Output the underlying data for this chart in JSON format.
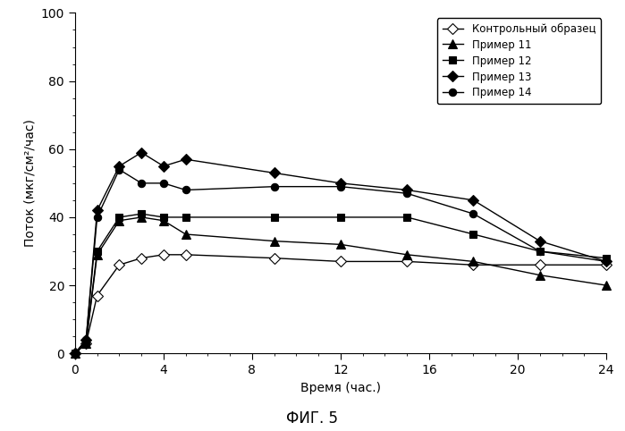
{
  "title": "ФИГ. 5",
  "xlabel": "Время (час.)",
  "ylabel": "Поток (мкг/см²/час)",
  "xlim": [
    0,
    24
  ],
  "ylim": [
    0,
    100
  ],
  "xticks": [
    0,
    4,
    8,
    12,
    16,
    20,
    24
  ],
  "yticks": [
    0,
    20,
    40,
    60,
    80,
    100
  ],
  "series": [
    {
      "label": "Контрольный образец",
      "marker": "D",
      "marker_fill": "white",
      "color": "#000000",
      "markersize": 6,
      "x": [
        0,
        0.5,
        1,
        2,
        3,
        4,
        5,
        9,
        12,
        15,
        18,
        21,
        24
      ],
      "y": [
        0,
        3,
        17,
        26,
        28,
        29,
        29,
        28,
        27,
        27,
        26,
        26,
        26
      ]
    },
    {
      "label": "Пример 11",
      "marker": "^",
      "marker_fill": "black",
      "color": "#000000",
      "markersize": 7,
      "x": [
        0,
        0.5,
        1,
        2,
        3,
        4,
        5,
        9,
        12,
        15,
        18,
        21,
        24
      ],
      "y": [
        0,
        3,
        29,
        39,
        40,
        39,
        35,
        33,
        32,
        29,
        27,
        23,
        20
      ]
    },
    {
      "label": "Пример 12",
      "marker": "s",
      "marker_fill": "black",
      "color": "#000000",
      "markersize": 6,
      "x": [
        0,
        0.5,
        1,
        2,
        3,
        4,
        5,
        9,
        12,
        15,
        18,
        21,
        24
      ],
      "y": [
        0,
        3,
        30,
        40,
        41,
        40,
        40,
        40,
        40,
        40,
        35,
        30,
        28
      ]
    },
    {
      "label": "Пример 13",
      "marker": "D",
      "marker_fill": "black",
      "color": "#000000",
      "markersize": 6,
      "x": [
        0,
        0.5,
        1,
        2,
        3,
        4,
        5,
        9,
        12,
        15,
        18,
        21,
        24
      ],
      "y": [
        0,
        4,
        42,
        55,
        59,
        55,
        57,
        53,
        50,
        48,
        45,
        33,
        27
      ]
    },
    {
      "label": "Пример 14",
      "marker": "o",
      "marker_fill": "black",
      "color": "#000000",
      "markersize": 6,
      "x": [
        0,
        0.5,
        1,
        2,
        3,
        4,
        5,
        9,
        12,
        15,
        18,
        21,
        24
      ],
      "y": [
        0,
        4,
        40,
        54,
        50,
        50,
        48,
        49,
        49,
        47,
        41,
        30,
        27
      ]
    }
  ],
  "legend_loc": "upper right",
  "fig_width": 6.99,
  "fig_height": 4.82,
  "dpi": 100
}
